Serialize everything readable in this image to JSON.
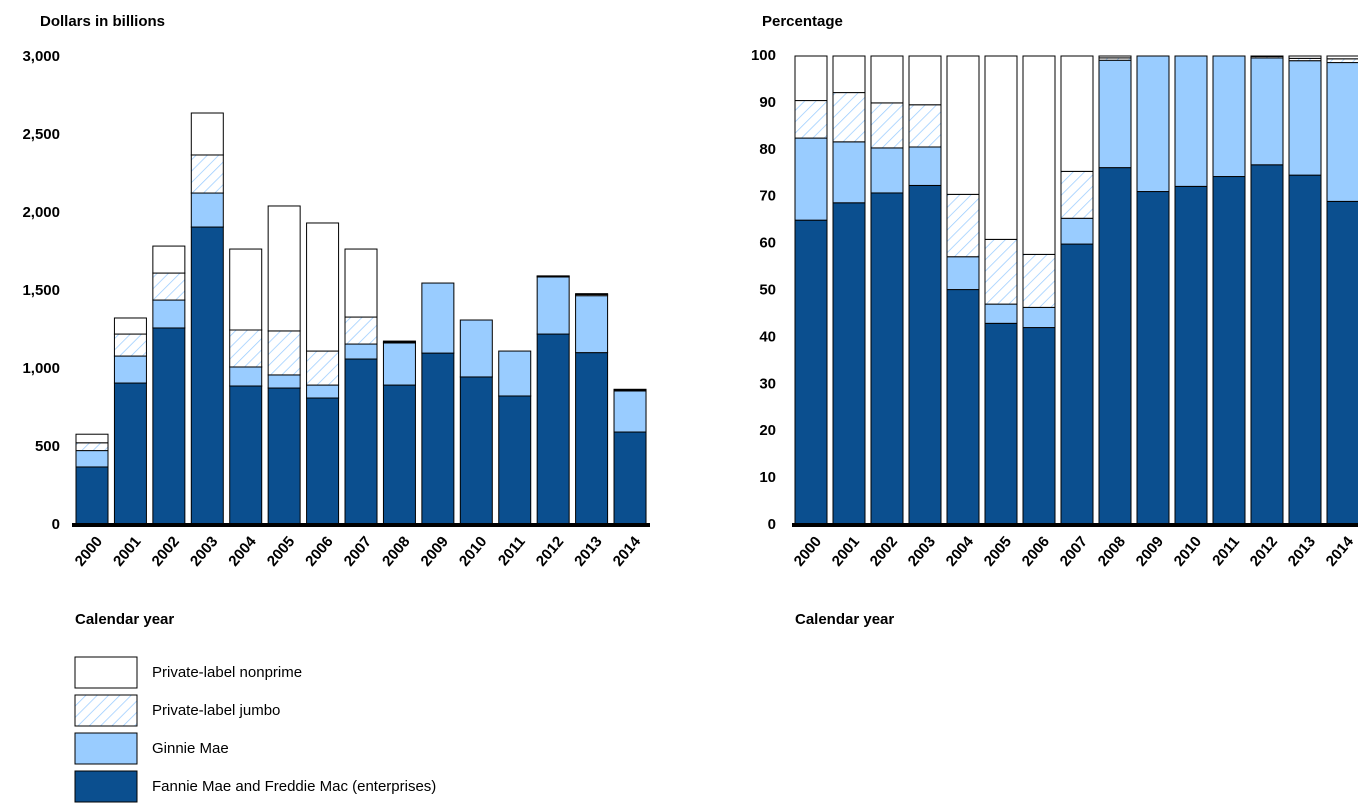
{
  "chart_data": [
    {
      "type": "stacked_bar",
      "y_label": "Dollars in billions",
      "x_label": "Calendar year",
      "categories": [
        "2000",
        "2001",
        "2002",
        "2003",
        "2004",
        "2005",
        "2006",
        "2007",
        "2008",
        "2009",
        "2010",
        "2011",
        "2012",
        "2013",
        "2014"
      ],
      "ylim": [
        0,
        3000
      ],
      "yticks": [
        0,
        500,
        {
          "value": 1000,
          "label": "1,000"
        },
        {
          "value": 1500,
          "label": "1,500"
        },
        {
          "value": 2000,
          "label": "2,000"
        },
        {
          "value": 2500,
          "label": "2,500"
        },
        {
          "value": 3000,
          "label": "3,000"
        }
      ],
      "series": [
        {
          "name": "Fannie Mae and Freddie Mac (enterprises)",
          "color": "#0b4f8f",
          "values": [
            372,
            910,
            1263,
            1910,
            891,
            878,
            814,
            1064,
            897,
            1102,
            949,
            827,
            1224,
            1105,
            596
          ]
        },
        {
          "name": "Ginnie Mae",
          "color": "#99ccff",
          "values": [
            105,
            173,
            179,
            218,
            122,
            84,
            83,
            96,
            270,
            449,
            365,
            288,
            366,
            365,
            263
          ]
        },
        {
          "name": "Private-label jumbo",
          "color": "#99ccff",
          "pattern": "hatch",
          "values": [
            50,
            141,
            173,
            244,
            237,
            282,
            218,
            173,
            6,
            0,
            0,
            0,
            5,
            8,
            6
          ]
        },
        {
          "name": "Private-label nonprime",
          "color": "#ffffff",
          "values": [
            55,
            103,
            173,
            269,
            519,
            801,
            821,
            436,
            6,
            0,
            0,
            0,
            2,
            5,
            5
          ]
        }
      ]
    },
    {
      "type": "stacked_bar",
      "y_label": "Percentage",
      "x_label": "Calendar year",
      "categories": [
        "2000",
        "2001",
        "2002",
        "2003",
        "2004",
        "2005",
        "2006",
        "2007",
        "2008",
        "2009",
        "2010",
        "2011",
        "2012",
        "2013",
        "2014"
      ],
      "ylim": [
        0,
        100
      ],
      "yticks": [
        0,
        10,
        20,
        30,
        40,
        50,
        60,
        70,
        80,
        90,
        100
      ],
      "series": [
        {
          "color": "#0b4f8f",
          "values": [
            65,
            68.7,
            70.8,
            72.4,
            50.2,
            43,
            42.1,
            59.9,
            76.2,
            71.1,
            72.2,
            74.3,
            76.8,
            74.6,
            69
          ]
        },
        {
          "color": "#99ccff",
          "values": [
            17.5,
            13,
            9.6,
            8.2,
            7,
            4.1,
            4.3,
            5.5,
            22.9,
            28.9,
            27.8,
            25.7,
            22.8,
            24.4,
            29.6
          ]
        },
        {
          "color": "#99ccff",
          "pattern": "hatch",
          "values": [
            8,
            10.5,
            9.6,
            9,
            13.3,
            13.8,
            11.3,
            10,
            0.5,
            0,
            0,
            0,
            0.3,
            0.5,
            0.8
          ]
        },
        {
          "color": "#ffffff",
          "values": [
            9.5,
            7.8,
            10,
            10.4,
            29.5,
            39.1,
            42.3,
            24.6,
            0.4,
            0,
            0,
            0,
            0.1,
            0.5,
            0.6
          ]
        }
      ]
    }
  ]
}
